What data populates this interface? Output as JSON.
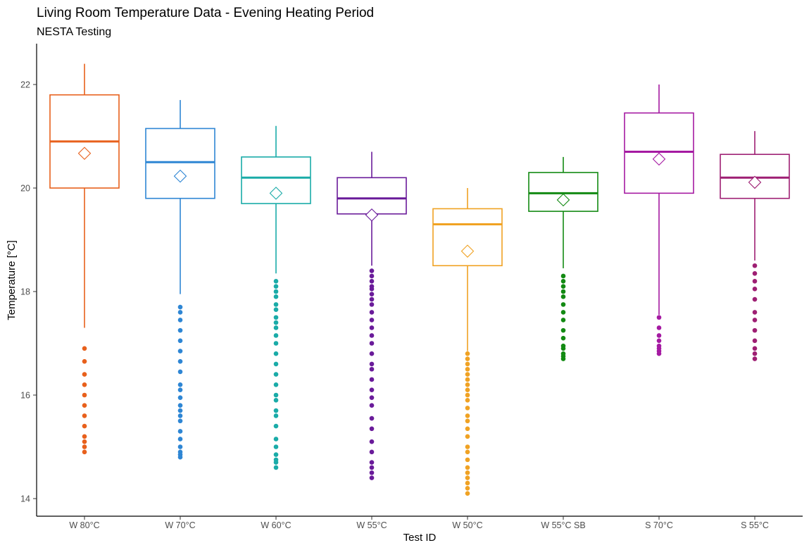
{
  "chart_data": {
    "type": "boxplot",
    "title": "Living Room Temperature Data - Evening Heating Period",
    "subtitle": "NESTA Testing",
    "xlabel": "Test ID",
    "ylabel": "Temperature [°C]",
    "ylim": [
      13.9,
      22.8
    ],
    "yticks": [
      14,
      16,
      18,
      20,
      22
    ],
    "grid": false,
    "legend": "none",
    "categories": [
      "W 80°C",
      "W 70°C",
      "W 60°C",
      "W 55°C",
      "W 50°C",
      "W 55°C SB",
      "S 70°C",
      "S 55°C"
    ],
    "series": [
      {
        "category": "W 80°C",
        "color": "#E8601C",
        "whisker_low": 17.3,
        "q1": 20.0,
        "median": 20.9,
        "q3": 21.8,
        "whisker_high": 22.4,
        "mean": 20.67,
        "outliers": [
          16.9,
          16.65,
          16.4,
          16.2,
          16.0,
          15.8,
          15.6,
          15.4,
          15.2,
          15.1,
          15.0,
          14.9
        ]
      },
      {
        "category": "W 70°C",
        "color": "#2E86D4",
        "whisker_low": 17.95,
        "q1": 19.8,
        "median": 20.5,
        "q3": 21.15,
        "whisker_high": 21.7,
        "mean": 20.23,
        "outliers": [
          17.7,
          17.6,
          17.45,
          17.25,
          17.05,
          16.85,
          16.65,
          16.45,
          16.2,
          16.1,
          15.95,
          15.8,
          15.7,
          15.6,
          15.5,
          15.3,
          15.15,
          15.0,
          14.9,
          14.85,
          14.8
        ]
      },
      {
        "category": "W 60°C",
        "color": "#1AABA8",
        "whisker_low": 18.35,
        "q1": 19.7,
        "median": 20.2,
        "q3": 20.6,
        "whisker_high": 21.2,
        "mean": 19.9,
        "outliers": [
          18.2,
          18.1,
          18.0,
          17.9,
          17.75,
          17.65,
          17.5,
          17.4,
          17.3,
          17.15,
          17.0,
          16.8,
          16.6,
          16.4,
          16.2,
          16.0,
          15.9,
          15.7,
          15.6,
          15.4,
          15.15,
          15.0,
          14.85,
          14.75,
          14.7,
          14.6
        ]
      },
      {
        "category": "W 55°C",
        "color": "#6A1B9A",
        "whisker_low": 18.5,
        "q1": 19.5,
        "median": 19.8,
        "q3": 20.2,
        "whisker_high": 20.7,
        "mean": 19.48,
        "outliers": [
          18.4,
          18.3,
          18.2,
          18.1,
          18.05,
          17.95,
          17.85,
          17.75,
          17.6,
          17.45,
          17.3,
          17.15,
          17.0,
          16.8,
          16.6,
          16.5,
          16.3,
          16.1,
          15.95,
          15.8,
          15.55,
          15.35,
          15.1,
          14.9,
          14.7,
          14.6,
          14.5,
          14.4
        ]
      },
      {
        "category": "W 50°C",
        "color": "#F0A223",
        "whisker_low": 16.85,
        "q1": 18.5,
        "median": 19.3,
        "q3": 19.6,
        "whisker_high": 20.0,
        "mean": 18.78,
        "outliers": [
          16.8,
          16.7,
          16.6,
          16.5,
          16.4,
          16.3,
          16.2,
          16.1,
          16.0,
          15.9,
          15.75,
          15.6,
          15.5,
          15.35,
          15.2,
          15.0,
          14.9,
          14.75,
          14.6,
          14.5,
          14.4,
          14.3,
          14.2,
          14.1
        ]
      },
      {
        "category": "W 55°C SB",
        "color": "#138A13",
        "whisker_low": 18.45,
        "q1": 19.55,
        "median": 19.9,
        "q3": 20.3,
        "whisker_high": 20.6,
        "mean": 19.77,
        "outliers": [
          18.3,
          18.2,
          18.1,
          18.0,
          17.9,
          17.75,
          17.6,
          17.45,
          17.25,
          17.1,
          16.95,
          16.9,
          16.8,
          16.75,
          16.7
        ]
      },
      {
        "category": "S 70°C",
        "color": "#A51AA2",
        "whisker_low": 17.55,
        "q1": 19.9,
        "median": 20.7,
        "q3": 21.45,
        "whisker_high": 22.0,
        "mean": 20.56,
        "outliers": [
          17.5,
          17.3,
          17.15,
          17.05,
          16.95,
          16.9,
          16.85,
          16.8
        ]
      },
      {
        "category": "S 55°C",
        "color": "#9E1F73",
        "whisker_low": 18.6,
        "q1": 19.8,
        "median": 20.2,
        "q3": 20.65,
        "whisker_high": 21.1,
        "mean": 20.11,
        "outliers": [
          18.5,
          18.35,
          18.2,
          18.05,
          17.85,
          17.6,
          17.45,
          17.25,
          17.05,
          16.9,
          16.8,
          16.7
        ]
      }
    ]
  }
}
